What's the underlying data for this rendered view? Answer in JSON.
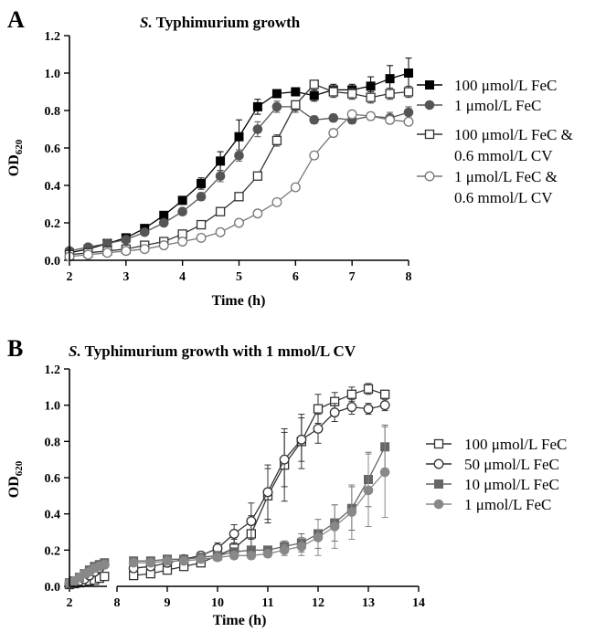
{
  "chart_data": [
    {
      "panel": "A",
      "type": "line",
      "title_italic": "S.",
      "title_rest": " Typhimurium growth",
      "xlabel": "Time (h)",
      "ylabel_main": "OD",
      "ylabel_sub": "620",
      "xlim": [
        2,
        8
      ],
      "ylim": [
        0,
        1.2
      ],
      "xticks": [
        2,
        3,
        4,
        5,
        6,
        7,
        8
      ],
      "yticks": [
        "0.0",
        "0.2",
        "0.4",
        "0.6",
        "0.8",
        "1.0",
        "1.2"
      ],
      "legend_position": "right",
      "x": [
        2.0,
        2.33,
        2.67,
        3.0,
        3.33,
        3.67,
        4.0,
        4.33,
        4.67,
        5.0,
        5.33,
        5.67,
        6.0,
        6.33,
        6.67,
        7.0,
        7.33,
        7.67,
        8.0
      ],
      "series": [
        {
          "name": "100 μmol/L FeC",
          "marker": "square",
          "filled": true,
          "color": "#000000",
          "values": [
            0.04,
            0.06,
            0.09,
            0.12,
            0.17,
            0.24,
            0.32,
            0.41,
            0.53,
            0.66,
            0.82,
            0.89,
            0.9,
            0.88,
            0.91,
            0.91,
            0.93,
            0.97,
            1.0
          ],
          "errors": [
            0.005,
            0.005,
            0.008,
            0.01,
            0.01,
            0.015,
            0.02,
            0.03,
            0.05,
            0.09,
            0.04,
            0.02,
            0.02,
            0.03,
            0.03,
            0.03,
            0.05,
            0.07,
            0.08
          ]
        },
        {
          "name": "1 μmol/L FeC",
          "marker": "circle",
          "filled": true,
          "color": "#555555",
          "values": [
            0.05,
            0.07,
            0.09,
            0.11,
            0.15,
            0.2,
            0.26,
            0.34,
            0.45,
            0.56,
            0.7,
            0.82,
            0.82,
            0.75,
            0.76,
            0.75,
            0.77,
            0.76,
            0.79
          ],
          "errors": [
            0.005,
            0.005,
            0.008,
            0.01,
            0.01,
            0.01,
            0.015,
            0.02,
            0.03,
            0.03,
            0.04,
            0.03,
            0.03,
            0.02,
            0.02,
            0.02,
            0.02,
            0.03,
            0.03
          ]
        },
        {
          "name_line1": "100 μmol/L FeC &",
          "name_line2": "0.6 mmol/L CV",
          "marker": "square",
          "filled": false,
          "color": "#333333",
          "values": [
            0.03,
            0.04,
            0.05,
            0.06,
            0.08,
            0.1,
            0.14,
            0.19,
            0.26,
            0.34,
            0.45,
            0.64,
            0.83,
            0.94,
            0.9,
            0.89,
            0.87,
            0.89,
            0.9
          ],
          "errors": [
            0.005,
            0.005,
            0.005,
            0.005,
            0.008,
            0.01,
            0.01,
            0.01,
            0.015,
            0.015,
            0.02,
            0.03,
            0.02,
            0.02,
            0.03,
            0.03,
            0.03,
            0.03,
            0.03
          ]
        },
        {
          "name_line1": "1 μmol/L FeC &",
          "name_line2": "0.6 mmol/L CV",
          "marker": "circle",
          "filled": false,
          "color": "#777777",
          "values": [
            0.02,
            0.03,
            0.04,
            0.05,
            0.06,
            0.08,
            0.1,
            0.12,
            0.15,
            0.2,
            0.25,
            0.31,
            0.39,
            0.56,
            0.68,
            0.78,
            0.77,
            0.75,
            0.74
          ],
          "errors": [
            0.003,
            0.003,
            0.004,
            0.005,
            0.005,
            0.005,
            0.006,
            0.008,
            0.008,
            0.01,
            0.01,
            0.01,
            0.015,
            0.02,
            0.02,
            0.02,
            0.02,
            0.02,
            0.02
          ]
        }
      ]
    },
    {
      "panel": "B",
      "type": "line",
      "title_italic": "S.",
      "title_rest": " Typhimurium growth with 1 mmol/L CV",
      "xlabel": "Time (h)",
      "ylabel_main": "OD",
      "ylabel_sub": "620",
      "ylim": [
        0,
        1.2
      ],
      "yticks": [
        "0.0",
        "0.2",
        "0.4",
        "0.6",
        "0.8",
        "1.0",
        "1.2"
      ],
      "segment1": {
        "xlim": [
          2,
          2.75
        ],
        "xticks": [
          2
        ]
      },
      "segment2": {
        "xlim": [
          8,
          14
        ],
        "xticks": [
          8,
          9,
          10,
          11,
          12,
          13,
          14
        ]
      },
      "legend_position": "right",
      "x_early": [
        2.0,
        2.1,
        2.2,
        2.3,
        2.4,
        2.5,
        2.6,
        2.7
      ],
      "x_late": [
        8.33,
        8.67,
        9.0,
        9.33,
        9.67,
        10.0,
        10.33,
        10.67,
        11.0,
        11.33,
        11.67,
        12.0,
        12.33,
        12.67,
        13.0,
        13.33
      ],
      "series": [
        {
          "name": "100 μmol/L FeC",
          "marker": "square",
          "filled": false,
          "color": "#333333",
          "values_early": [
            0.01,
            0.015,
            0.02,
            0.025,
            0.03,
            0.035,
            0.045,
            0.055
          ],
          "errors_early": [
            0.01,
            0.01,
            0.01,
            0.012,
            0.015,
            0.015,
            0.02,
            0.02
          ],
          "values_late": [
            0.06,
            0.07,
            0.09,
            0.11,
            0.13,
            0.17,
            0.21,
            0.29,
            0.5,
            0.67,
            0.8,
            0.98,
            1.02,
            1.06,
            1.09,
            1.06
          ],
          "errors_late": [
            0.01,
            0.01,
            0.01,
            0.01,
            0.02,
            0.03,
            0.05,
            0.1,
            0.15,
            0.2,
            0.15,
            0.08,
            0.05,
            0.04,
            0.03,
            0.02
          ]
        },
        {
          "name": "50 μmol/L FeC",
          "marker": "circle",
          "filled": false,
          "color": "#333333",
          "values_early": [
            0.015,
            0.02,
            0.03,
            0.04,
            0.06,
            0.08,
            0.1,
            0.12
          ],
          "errors_early": [
            0.01,
            0.01,
            0.012,
            0.015,
            0.02,
            0.02,
            0.02,
            0.02
          ],
          "values_late": [
            0.1,
            0.11,
            0.13,
            0.15,
            0.17,
            0.21,
            0.29,
            0.36,
            0.52,
            0.7,
            0.81,
            0.87,
            0.96,
            0.99,
            0.98,
            1.0
          ],
          "errors_late": [
            0.01,
            0.01,
            0.01,
            0.01,
            0.02,
            0.03,
            0.05,
            0.1,
            0.15,
            0.15,
            0.12,
            0.08,
            0.05,
            0.04,
            0.03,
            0.03
          ]
        },
        {
          "name": "10 μmol/L FeC",
          "marker": "square",
          "filled": true,
          "color": "#666666",
          "values_early": [
            0.02,
            0.03,
            0.05,
            0.07,
            0.09,
            0.11,
            0.12,
            0.13
          ],
          "errors_early": [
            0.01,
            0.012,
            0.015,
            0.02,
            0.02,
            0.02,
            0.02,
            0.02
          ],
          "values_late": [
            0.14,
            0.14,
            0.15,
            0.15,
            0.16,
            0.17,
            0.19,
            0.2,
            0.2,
            0.22,
            0.24,
            0.29,
            0.35,
            0.43,
            0.59,
            0.77
          ],
          "errors_late": [
            0.01,
            0.01,
            0.01,
            0.01,
            0.01,
            0.01,
            0.02,
            0.02,
            0.02,
            0.03,
            0.05,
            0.08,
            0.1,
            0.12,
            0.15,
            0.12
          ]
        },
        {
          "name": "1 μmol/L FeC",
          "marker": "circle",
          "filled": true,
          "color": "#888888",
          "values_early": [
            0.02,
            0.03,
            0.05,
            0.07,
            0.08,
            0.1,
            0.11,
            0.12
          ],
          "errors_early": [
            0.01,
            0.012,
            0.015,
            0.02,
            0.02,
            0.02,
            0.02,
            0.02
          ],
          "values_late": [
            0.13,
            0.13,
            0.14,
            0.14,
            0.15,
            0.16,
            0.17,
            0.17,
            0.18,
            0.2,
            0.22,
            0.27,
            0.33,
            0.41,
            0.53,
            0.63
          ],
          "errors_late": [
            0.01,
            0.01,
            0.01,
            0.01,
            0.01,
            0.01,
            0.02,
            0.02,
            0.02,
            0.03,
            0.05,
            0.1,
            0.12,
            0.15,
            0.2,
            0.25
          ]
        }
      ]
    }
  ]
}
